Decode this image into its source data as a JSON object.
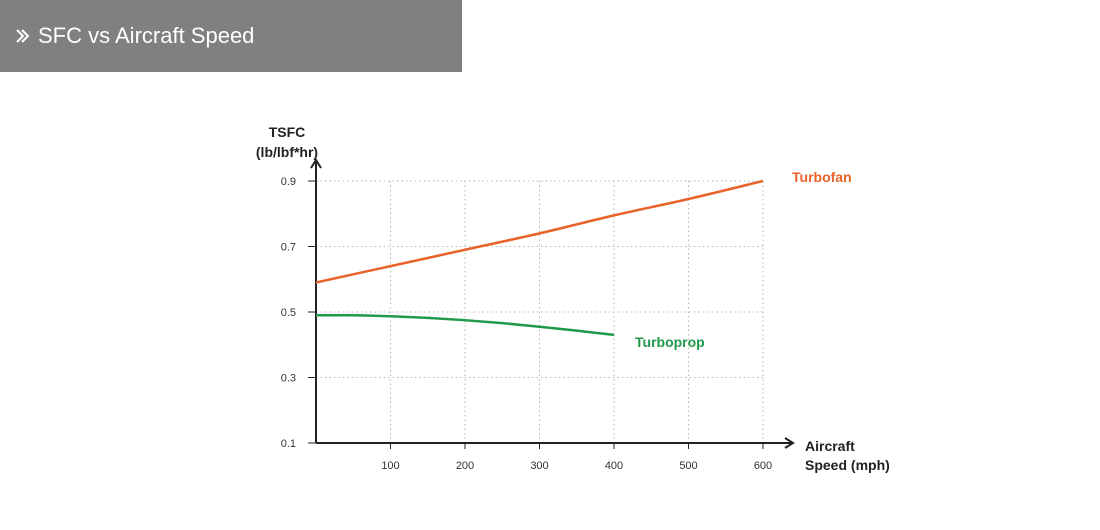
{
  "header": {
    "title": "SFC vs Aircraft Speed",
    "icon": "double-chevron-right-icon",
    "background": "#808080"
  },
  "chart_data": {
    "type": "line",
    "ylabel_line1": "TSFC",
    "ylabel_line2": "(lb/lbf*hr)",
    "xlabel_line1": "Aircraft",
    "xlabel_line2": "Speed (mph)",
    "xlim": [
      0,
      600
    ],
    "ylim": [
      0.1,
      1.0
    ],
    "x_ticks": [
      100,
      200,
      300,
      400,
      500,
      600
    ],
    "y_ticks": [
      0.1,
      0.3,
      0.5,
      0.7,
      0.9
    ],
    "y_tick_labels": [
      "0.1",
      "0.3",
      "0.5",
      "0.7",
      "0.9"
    ],
    "grid": true,
    "series": [
      {
        "name": "Turbofan",
        "color": "#e8622a",
        "x": [
          0,
          100,
          200,
          300,
          400,
          500,
          600
        ],
        "y": [
          0.59,
          0.64,
          0.69,
          0.74,
          0.795,
          0.845,
          0.9
        ]
      },
      {
        "name": "Turboprop",
        "color": "#1f9a4a",
        "x": [
          0,
          50,
          100,
          150,
          200,
          250,
          300,
          350,
          400
        ],
        "y": [
          0.49,
          0.49,
          0.487,
          0.482,
          0.475,
          0.466,
          0.455,
          0.443,
          0.43
        ]
      }
    ]
  }
}
